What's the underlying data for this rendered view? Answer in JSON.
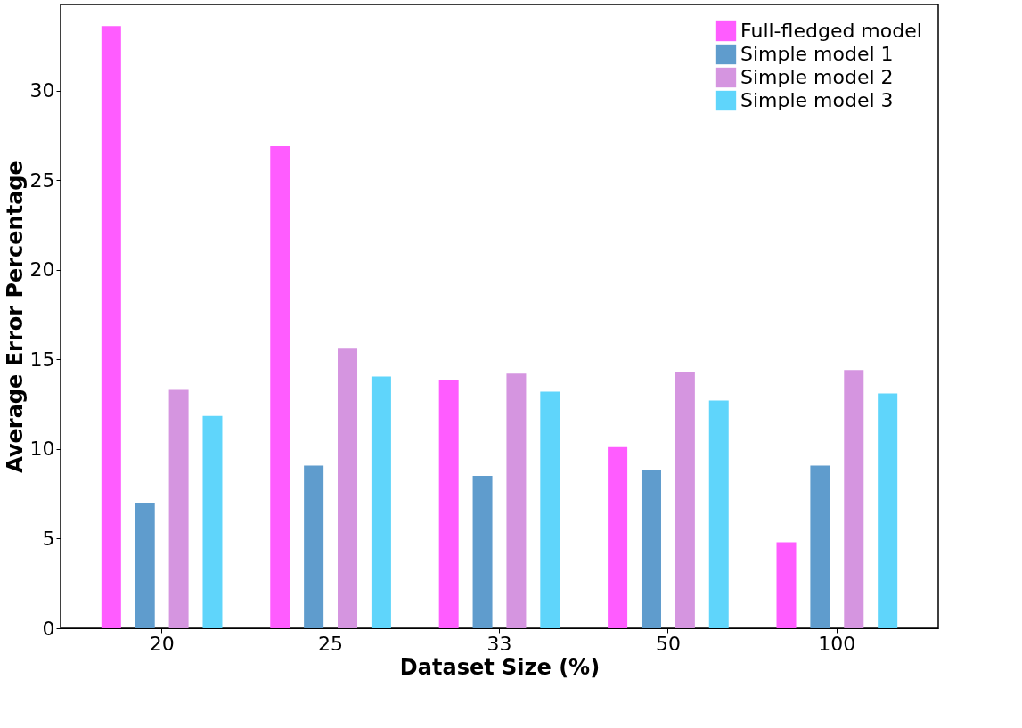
{
  "chart_data": {
    "type": "bar",
    "xlabel": "Dataset Size (%)",
    "ylabel": "Average Error Percentage",
    "categories": [
      "20",
      "25",
      "33",
      "50",
      "100"
    ],
    "series": [
      {
        "name": "Full-fledged model",
        "color": "#ff5cff",
        "values": [
          33.6,
          26.9,
          13.85,
          10.1,
          4.8
        ]
      },
      {
        "name": "Simple model 1",
        "color": "#5f9ccd",
        "values": [
          7.0,
          9.07,
          8.5,
          8.8,
          9.07
        ]
      },
      {
        "name": "Simple model 2",
        "color": "#d595e0",
        "values": [
          13.3,
          15.6,
          14.2,
          14.3,
          14.4
        ]
      },
      {
        "name": "Simple model 3",
        "color": "#5fd5fb",
        "values": [
          11.85,
          14.05,
          13.2,
          12.7,
          13.1
        ]
      }
    ],
    "ylim": [
      0,
      34.8
    ],
    "yticks": [
      0,
      5,
      10,
      15,
      20,
      25,
      30
    ],
    "grid": false,
    "legend": "top right"
  }
}
